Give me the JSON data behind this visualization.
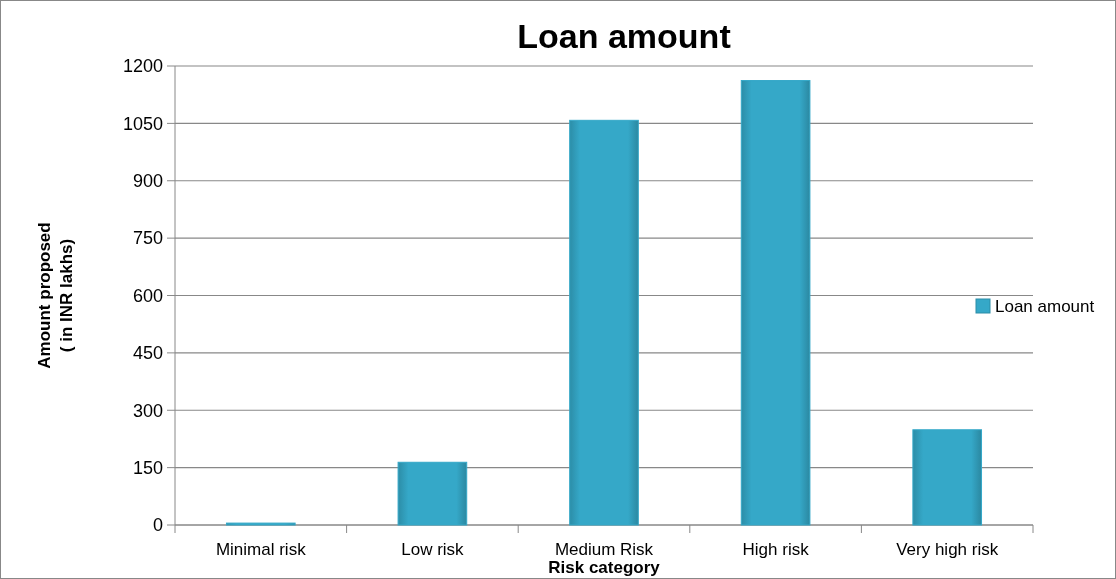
{
  "chart_data": {
    "type": "bar",
    "title": "Loan amount",
    "xlabel": "Risk category",
    "ylabel": "Amount proposed\n( in INR lakhs)",
    "categories": [
      "Minimal risk",
      "Low risk",
      "Medium Risk",
      "High risk",
      "Very high risk"
    ],
    "series": [
      {
        "name": "Loan amount",
        "color": "#35a8c8",
        "values": [
          5,
          164,
          1058,
          1162,
          249
        ]
      }
    ],
    "ylim": [
      0,
      1200
    ],
    "yticks": [
      0,
      150,
      300,
      450,
      600,
      750,
      900,
      1050,
      1200
    ],
    "grid": "y",
    "legend": "right"
  }
}
